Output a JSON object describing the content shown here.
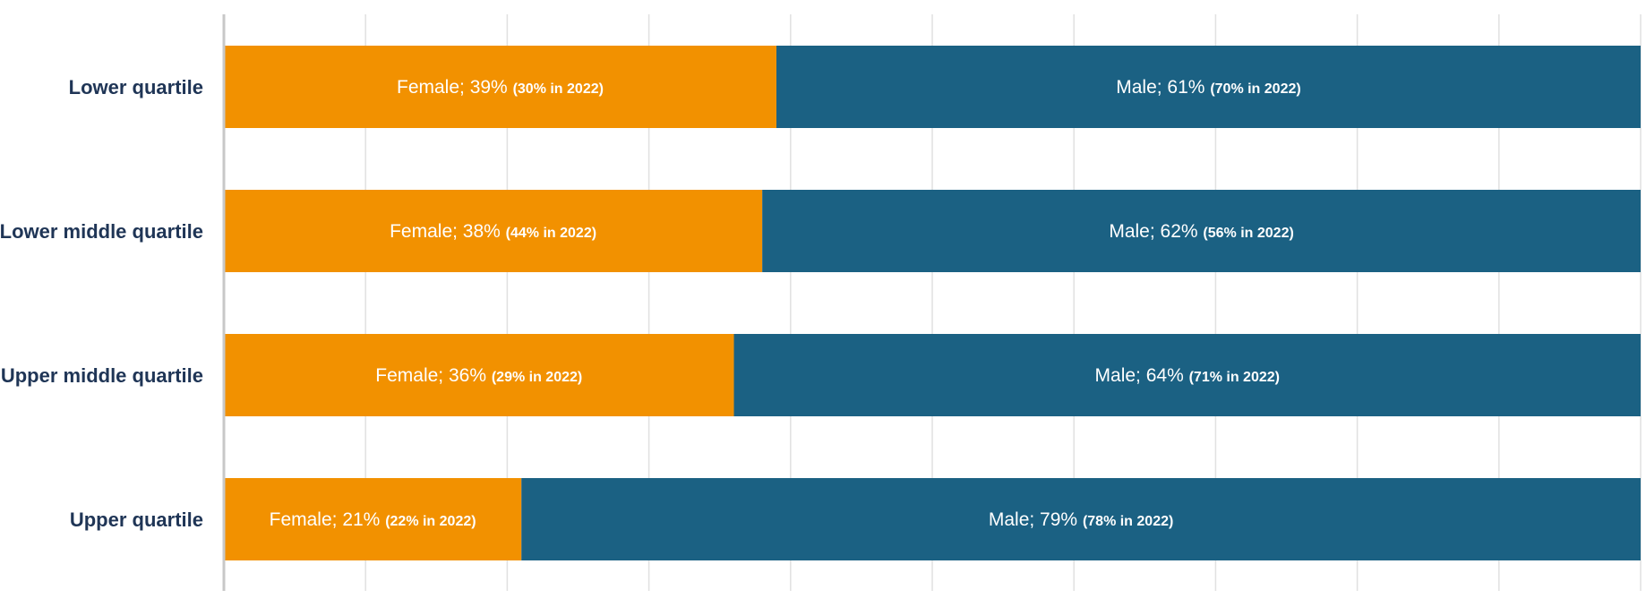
{
  "chart_data": {
    "type": "bar",
    "orientation": "horizontal",
    "stacked": true,
    "categories": [
      "Lower quartile",
      "Lower middle quartile",
      "Upper middle quartile",
      "Upper quartile"
    ],
    "series": [
      {
        "name": "Female",
        "values": [
          39,
          38,
          36,
          21
        ],
        "labels_prefix": [
          "Female; 39%",
          "Female; 38%",
          "Female; 36%",
          "Female; 21%"
        ],
        "labels_note": [
          "(30% in 2022)",
          "(44% in 2022)",
          "(29% in 2022)",
          "(22% in 2022)"
        ]
      },
      {
        "name": "Male",
        "values": [
          61,
          62,
          64,
          79
        ],
        "labels_prefix": [
          "Male; 61%",
          "Male; 62%",
          "Male; 64%",
          "Male; 79%"
        ],
        "labels_note": [
          "(70% in 2022)",
          "(56% in 2022)",
          "(71% in 2022)",
          "(78% in 2022)"
        ]
      }
    ],
    "xlim": [
      0,
      100
    ],
    "grid": true,
    "legend": "none"
  },
  "colors": {
    "female": "#f29100",
    "male": "#1b6183",
    "grid": "#e1e1e1",
    "axis": "#c8c8c8",
    "category_text": "#1f3556"
  }
}
